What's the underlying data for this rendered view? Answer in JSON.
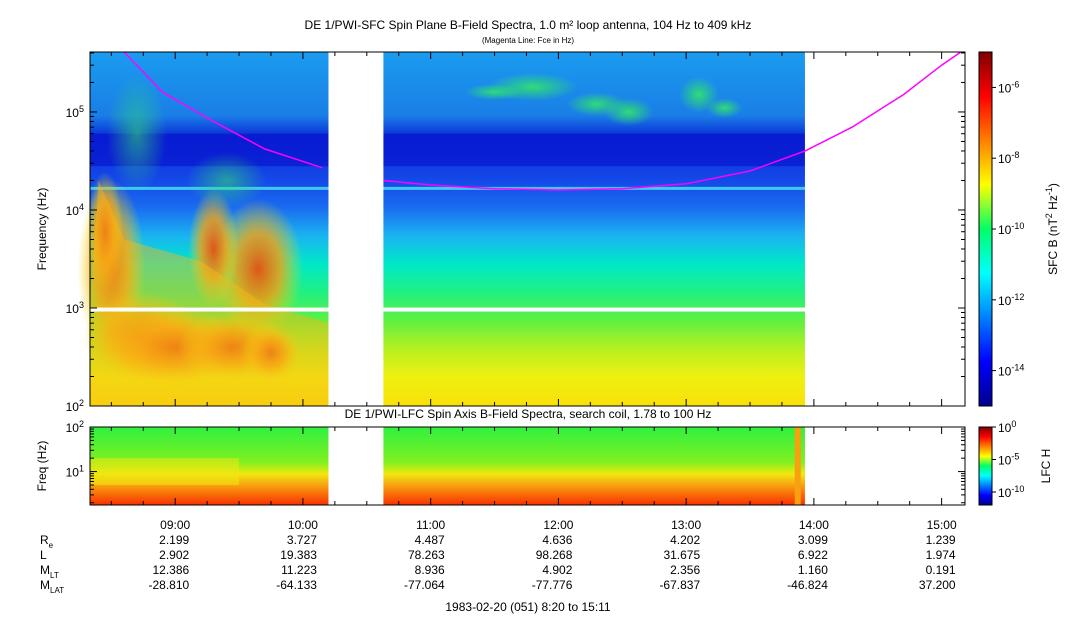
{
  "chart_data": [
    {
      "type": "heatmap",
      "title": "DE 1/PWI-SFC  Spin Plane B-Field Spectra, 1.0 m² loop antenna, 104 Hz to 409 kHz",
      "subtitle": "(Magenta Line: Fce in Hz)",
      "ylabel": "Frequency (Hz)",
      "y_scale": "log",
      "ylim": [
        100,
        409000
      ],
      "y_ticks": [
        {
          "value": 100,
          "mant": "10",
          "exp": "2"
        },
        {
          "value": 1000,
          "mant": "10",
          "exp": "3"
        },
        {
          "value": 10000,
          "mant": "10",
          "exp": "4"
        },
        {
          "value": 100000,
          "mant": "10",
          "exp": "5"
        }
      ],
      "x_unit": "hours UT",
      "xlim": [
        8.333,
        15.183
      ],
      "data_gaps": [
        {
          "start": 10.2,
          "end": 10.63,
          "freq_min": 100,
          "freq_max": 409000
        },
        {
          "start": 13.93,
          "end": 15.183,
          "freq_min": 100,
          "freq_max": 409000
        },
        {
          "start": 8.333,
          "end": 15.183,
          "freq_min": 920,
          "freq_max": 1010
        }
      ],
      "fce_line": {
        "color": "#ff00ff",
        "segments": [
          {
            "x": [
              8.6,
              8.9,
              9.3,
              9.7,
              10.15
            ],
            "y": [
              409000,
              160000,
              80000,
              42000,
              27000
            ]
          },
          {
            "x": [
              10.63,
              11.0,
              11.5,
              12.0,
              12.5,
              13.0,
              13.5,
              13.93,
              14.3,
              14.7,
              15.0,
              15.15
            ],
            "y": [
              20000,
              18000,
              16500,
              16000,
              16500,
              18500,
              25000,
              40000,
              70000,
              150000,
              300000,
              409000
            ]
          }
        ]
      },
      "colorbar": {
        "label": "SFC B (nT",
        "label_exp": "2",
        "label_mid": " Hz",
        "label_exp2": "-1",
        "label_end": ")",
        "scale": "log",
        "range": [
          1e-15,
          1e-05
        ],
        "ticks": [
          {
            "mant": "10",
            "exp": "-6"
          },
          {
            "mant": "10",
            "exp": "-8"
          },
          {
            "mant": "10",
            "exp": "-10"
          },
          {
            "mant": "10",
            "exp": "-12"
          },
          {
            "mant": "10",
            "exp": "-14"
          }
        ]
      }
    },
    {
      "type": "heatmap",
      "title": "DE 1/PWI-LFC  Spin Axis B-Field Spectra, search coil, 1.78 to 100 Hz",
      "ylabel": "Freq (Hz)",
      "y_scale": "log",
      "ylim": [
        1.78,
        100
      ],
      "y_ticks": [
        {
          "value": 10,
          "mant": "10",
          "exp": "1"
        },
        {
          "value": 100,
          "mant": "10",
          "exp": "2"
        }
      ],
      "xlim": [
        8.333,
        15.183
      ],
      "data_gaps": [
        {
          "start": 10.2,
          "end": 10.63
        },
        {
          "start": 13.93,
          "end": 15.183
        }
      ],
      "colorbar": {
        "label": "LFC H",
        "scale": "log",
        "range": [
          1e-12,
          1
        ],
        "ticks": [
          {
            "mant": "10",
            "exp": "0"
          },
          {
            "mant": "10",
            "exp": "-5"
          },
          {
            "mant": "10",
            "exp": "-10"
          }
        ]
      }
    }
  ],
  "ephemeris": {
    "ticks": [
      "09:00",
      "10:00",
      "11:00",
      "12:00",
      "13:00",
      "14:00",
      "15:00"
    ],
    "tick_hours": [
      9,
      10,
      11,
      12,
      13,
      14,
      15
    ],
    "rows": [
      {
        "label": "R",
        "sub": "e",
        "values": [
          "2.199",
          "3.727",
          "4.487",
          "4.636",
          "4.202",
          "3.099",
          "1.239"
        ]
      },
      {
        "label": "L",
        "sub": "",
        "values": [
          "2.902",
          "19.383",
          "78.263",
          "98.268",
          "31.675",
          "6.922",
          "1.974"
        ]
      },
      {
        "label": "M",
        "sub": "LT",
        "values": [
          "12.386",
          "11.223",
          "8.936",
          "4.902",
          "2.356",
          "1.160",
          "0.191"
        ]
      },
      {
        "label": "M",
        "sub": "LAT",
        "values": [
          "-28.810",
          "-64.133",
          "-77.064",
          "-77.776",
          "-67.837",
          "-46.824",
          "37.200"
        ]
      }
    ],
    "footer": "1983-02-20 (051) 8:20 to 15:11"
  }
}
